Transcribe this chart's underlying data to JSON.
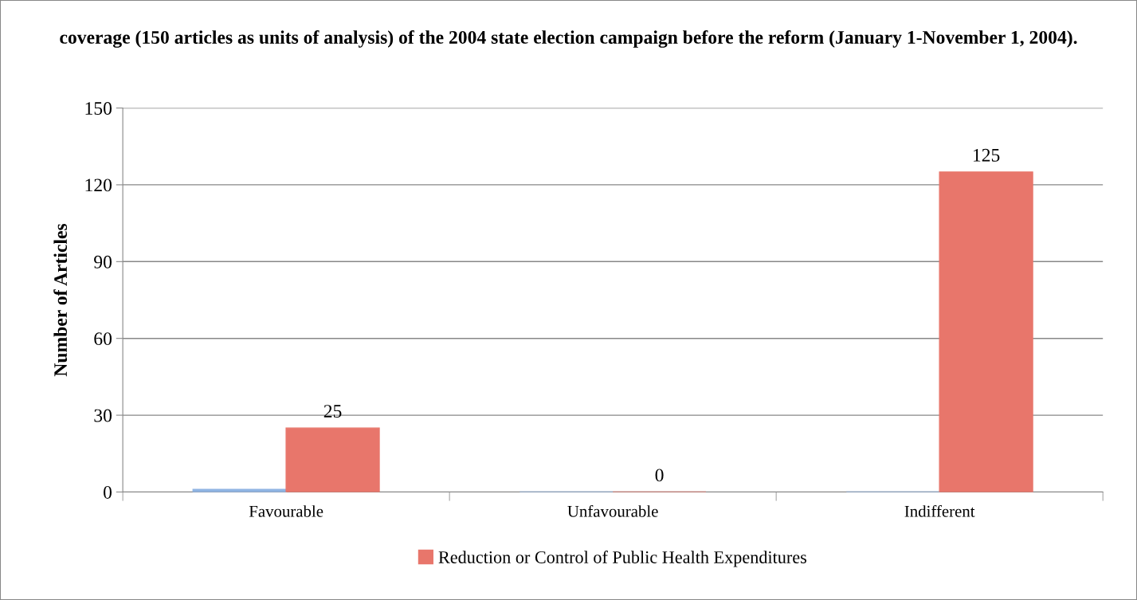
{
  "chart_data": {
    "type": "bar",
    "title": "coverage (150 articles as units of analysis) of the 2004 state election campaign before the reform (January 1-November 1, 2004).",
    "ylabel": "Number of Articles",
    "categories": [
      "Favourable",
      "Unfavourable",
      "Indifferent"
    ],
    "series": [
      {
        "color": "#8fb4e3",
        "values": [
          1,
          0,
          0
        ]
      },
      {
        "name": "Reduction or Control of Public Health Expenditures",
        "color": "#e8766b",
        "values": [
          25,
          0,
          125
        ],
        "value_labels": [
          "25",
          "0",
          "125"
        ]
      }
    ],
    "ylim": [
      0,
      150
    ],
    "yticks": [
      0,
      30,
      60,
      90,
      120,
      150
    ],
    "grid": "y",
    "legend": "bottom"
  }
}
